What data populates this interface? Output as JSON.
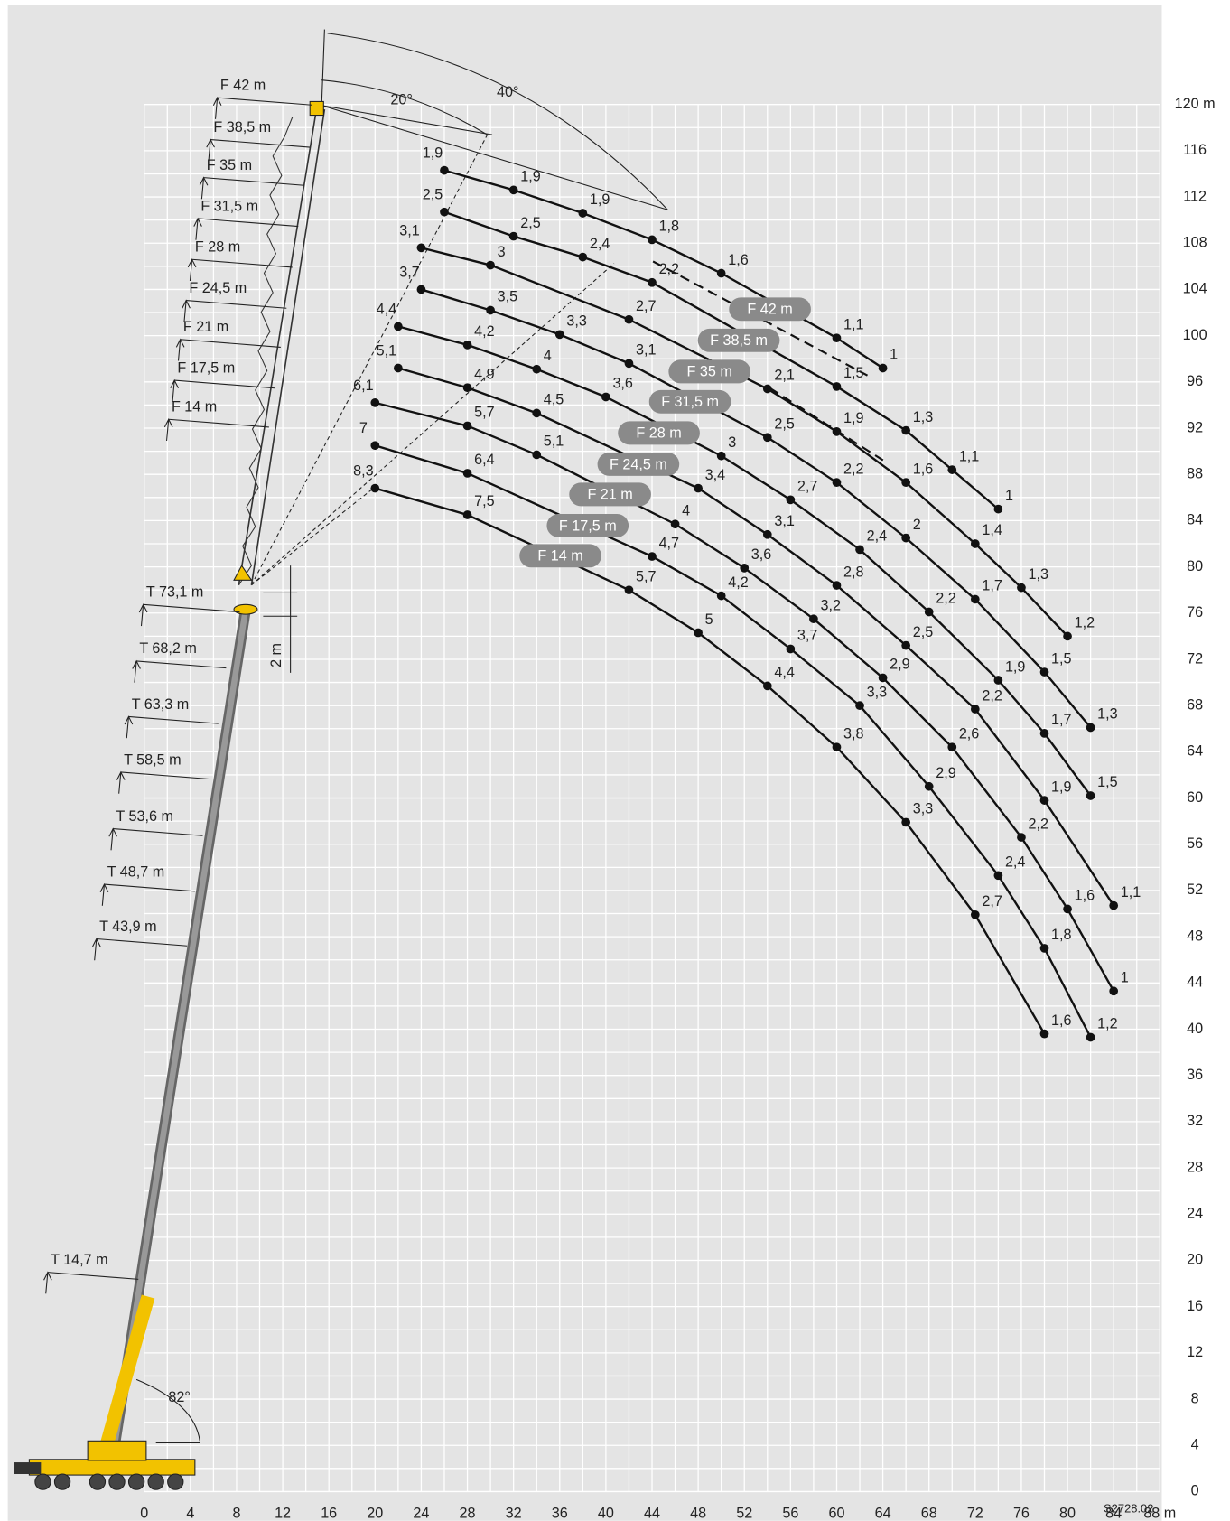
{
  "chart_data": {
    "type": "line",
    "xlim": [
      0,
      88
    ],
    "ylim": [
      0,
      120
    ],
    "xticks": [
      0,
      4,
      8,
      12,
      16,
      20,
      24,
      28,
      32,
      36,
      40,
      44,
      48,
      52,
      56,
      60,
      64,
      68,
      72,
      76,
      80,
      84,
      {
        "value": 88,
        "label": "88 m"
      }
    ],
    "yticks": [
      0,
      4,
      8,
      12,
      16,
      20,
      24,
      28,
      32,
      36,
      40,
      44,
      48,
      52,
      56,
      60,
      64,
      68,
      72,
      76,
      80,
      84,
      88,
      92,
      96,
      100,
      104,
      108,
      112,
      116,
      {
        "value": 120,
        "label": "120 m"
      }
    ],
    "grid": true,
    "series": [
      {
        "name": "F 42 m",
        "color": "#111111",
        "x": [
          26,
          32,
          38,
          44,
          50,
          60,
          64
        ],
        "y": [
          114.3,
          112.6,
          110.6,
          108.3,
          105.4,
          99.8,
          97.2
        ],
        "values": [
          1.9,
          1.9,
          1.9,
          1.8,
          1.6,
          1.1,
          1
        ],
        "value_labels": [
          "1,9",
          "1,9",
          "1,9",
          "1,8",
          "1,6",
          "1,1",
          "1"
        ]
      },
      {
        "name": "F 38,5 m",
        "color": "#111111",
        "x": [
          26,
          32,
          38,
          44,
          60,
          66,
          70,
          74
        ],
        "y": [
          110.7,
          108.6,
          106.8,
          104.6,
          95.6,
          91.8,
          88.4,
          85.0
        ],
        "values": [
          2.5,
          2.5,
          2.4,
          2.2,
          1.5,
          1.3,
          1.1,
          1
        ],
        "value_labels": [
          "2,5",
          "2,5",
          "2,4",
          "2,2",
          "1,5",
          "1,3",
          "1,1",
          "1"
        ]
      },
      {
        "name": "F 35 m",
        "color": "#111111",
        "x": [
          24,
          30,
          42,
          54,
          60,
          66,
          72,
          76,
          80
        ],
        "y": [
          107.6,
          106.1,
          101.4,
          95.4,
          91.7,
          87.3,
          82.0,
          78.2,
          74.0
        ],
        "values": [
          3.1,
          3,
          2.7,
          2.1,
          1.9,
          1.6,
          1.4,
          1.3,
          1.2
        ],
        "value_labels": [
          "3,1",
          "3",
          "2,7",
          "2,1",
          "1,9",
          "1,6",
          "1,4",
          "1,3",
          "1,2"
        ]
      },
      {
        "name": "F 31,5 m",
        "color": "#111111",
        "x": [
          24,
          30,
          36,
          42,
          54,
          60,
          66,
          72,
          78,
          82
        ],
        "y": [
          104.0,
          102.2,
          100.1,
          97.6,
          91.2,
          87.3,
          82.5,
          77.2,
          70.9,
          66.1
        ],
        "values": [
          3.7,
          3.5,
          3.3,
          3.1,
          2.5,
          2.2,
          2,
          1.7,
          1.5,
          1.3
        ],
        "value_labels": [
          "3,7",
          "3,5",
          "3,3",
          "3,1",
          "2,5",
          "2,2",
          "2",
          "1,7",
          "1,5",
          "1,3"
        ]
      },
      {
        "name": "F 28 m",
        "color": "#111111",
        "x": [
          22,
          28,
          34,
          40,
          50,
          56,
          62,
          68,
          74,
          78,
          82
        ],
        "y": [
          100.8,
          99.2,
          97.1,
          94.7,
          89.6,
          85.8,
          81.5,
          76.1,
          70.2,
          65.6,
          60.2
        ],
        "values": [
          4.4,
          4.2,
          4,
          3.6,
          3,
          2.7,
          2.4,
          2.2,
          1.9,
          1.7,
          1.5
        ],
        "value_labels": [
          "4,4",
          "4,2",
          "4",
          "3,6",
          "3",
          "2,7",
          "2,4",
          "2,2",
          "1,9",
          "1,7",
          "1,5"
        ]
      },
      {
        "name": "F 24,5 m",
        "color": "#111111",
        "x": [
          22,
          28,
          34,
          48,
          54,
          60,
          66,
          72,
          78,
          84
        ],
        "y": [
          97.2,
          95.5,
          93.3,
          86.8,
          82.8,
          78.4,
          73.2,
          67.7,
          59.8,
          50.7
        ],
        "values": [
          5.1,
          4.9,
          4.5,
          3.4,
          3.1,
          2.8,
          2.5,
          2.2,
          1.9,
          1.1
        ],
        "value_labels": [
          "5,1",
          "4,9",
          "4,5",
          "3,4",
          "3,1",
          "2,8",
          "2,5",
          "2,2",
          "1,9",
          "1,1"
        ]
      },
      {
        "name": "F 21 m",
        "color": "#111111",
        "x": [
          20,
          28,
          34,
          46,
          52,
          58,
          64,
          70,
          76,
          80,
          84
        ],
        "y": [
          94.2,
          92.2,
          89.7,
          83.7,
          79.9,
          75.5,
          70.4,
          64.4,
          56.6,
          50.4,
          43.3
        ],
        "values": [
          6.1,
          5.7,
          5.1,
          4,
          3.6,
          3.2,
          2.9,
          2.6,
          2.2,
          1.6,
          1
        ],
        "value_labels": [
          "6,1",
          "5,7",
          "5,1",
          "4",
          "3,6",
          "3,2",
          "2,9",
          "2,6",
          "2,2",
          "1,6",
          "1"
        ]
      },
      {
        "name": "F 17,5 m",
        "color": "#111111",
        "x": [
          20,
          28,
          44,
          50,
          56,
          62,
          68,
          74,
          78,
          82
        ],
        "y": [
          90.5,
          88.1,
          80.9,
          77.5,
          72.9,
          68.0,
          61.0,
          53.3,
          47.0,
          39.3
        ],
        "values": [
          7,
          6.4,
          4.7,
          4.2,
          3.7,
          3.3,
          2.9,
          2.4,
          1.8,
          1.2
        ],
        "value_labels": [
          "7",
          "6,4",
          "4,7",
          "4,2",
          "3,7",
          "3,3",
          "2,9",
          "2,4",
          "1,8",
          "1,2"
        ]
      },
      {
        "name": "F 14 m",
        "color": "#111111",
        "x": [
          20,
          28,
          42,
          48,
          54,
          60,
          66,
          72,
          78
        ],
        "y": [
          86.8,
          84.5,
          78.0,
          74.3,
          69.7,
          64.4,
          57.9,
          49.9,
          39.6
        ],
        "values": [
          8.3,
          7.5,
          5.7,
          5,
          4.4,
          3.8,
          3.3,
          2.7,
          1.6
        ],
        "value_labels": [
          "8,3",
          "7,5",
          "5,7",
          "5",
          "4,4",
          "3,8",
          "3,3",
          "2,7",
          "1,6"
        ]
      }
    ],
    "telescope_labels": [
      "T 73,1 m",
      "T 68,2 m",
      "T 63,3 m",
      "T 58,5 m",
      "T 53,6 m",
      "T 48,7 m",
      "T 43,9 m",
      "T 14,7 m"
    ],
    "annotations": [
      "20°",
      "40°",
      "82°",
      "2 m",
      "S2728.02"
    ]
  }
}
